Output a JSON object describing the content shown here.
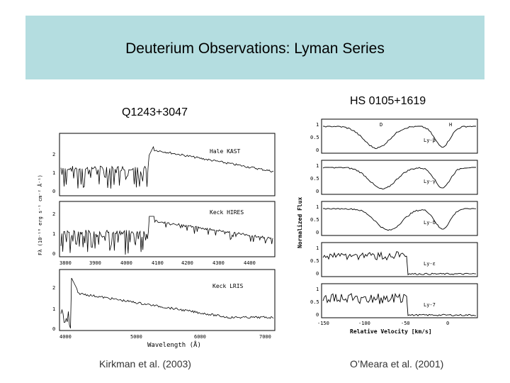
{
  "slide": {
    "title": "Deuterium Observations: Lyman Series",
    "left_object": "Q1243+3047",
    "right_object": "HS 0105+1619",
    "left_caption": "Kirkman et al. (2003)",
    "right_caption": "O’Meara et al. (2001)"
  },
  "left_figure": {
    "ylabel": "Fλ (10⁻¹⁶ erg s⁻¹ cm⁻² Å⁻¹)",
    "xlabel": "Wavelength (Å)",
    "panels": [
      {
        "label": "Hale KAST",
        "yticks": [
          "0",
          "1",
          "2"
        ]
      },
      {
        "label": "Keck HIRES",
        "yticks": [
          "0",
          "1",
          "2"
        ],
        "xticks": [
          "3800",
          "3900",
          "4000",
          "4100",
          "4200",
          "4300",
          "4400"
        ]
      },
      {
        "label": "Keck LRIS",
        "yticks": [
          "0",
          "1",
          "2"
        ],
        "xticks": [
          "4000",
          "5000",
          "6000",
          "7000"
        ]
      }
    ]
  },
  "right_figure": {
    "ylabel": "Normalized Flux",
    "xlabel": "Relative Velocity [km/s]",
    "xticks": [
      "-150",
      "-100",
      "-50",
      "0"
    ],
    "markers": [
      "D",
      "H"
    ],
    "panels": [
      {
        "label": "Ly-β",
        "yticks": [
          "0",
          "0.5",
          "1"
        ]
      },
      {
        "label": "Ly-γ",
        "yticks": [
          "0",
          "0.5",
          "1"
        ]
      },
      {
        "label": "Ly-δ",
        "yticks": [
          "0",
          "0.5",
          "1"
        ]
      },
      {
        "label": "Ly-ε",
        "yticks": [
          "0",
          "0.5",
          "1"
        ]
      },
      {
        "label": "Ly-7",
        "yticks": [
          "0",
          "0.5",
          "1"
        ]
      }
    ]
  }
}
